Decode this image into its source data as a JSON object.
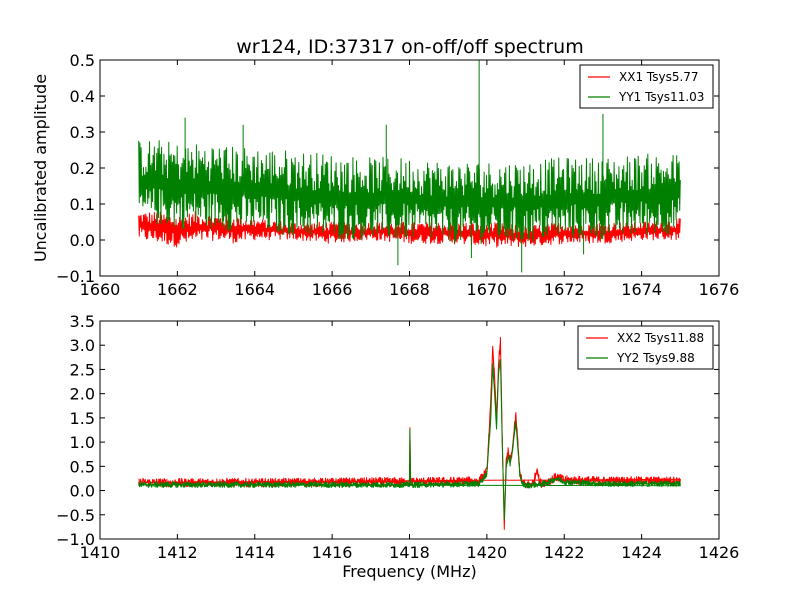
{
  "figure": {
    "title": "wr124, ID:37317 on-off/off spectrum"
  },
  "chart_data": [
    {
      "type": "line",
      "ylabel": "Uncalibrated amplitude",
      "xlabel": "",
      "xlim": [
        1660,
        1676
      ],
      "ylim": [
        -0.1,
        0.5
      ],
      "x_ticks": [
        1660,
        1662,
        1664,
        1666,
        1668,
        1670,
        1672,
        1674,
        1676
      ],
      "y_ticks": [
        -0.1,
        0.0,
        0.1,
        0.2,
        0.3,
        0.4,
        0.5
      ],
      "x_tick_labels": [
        "1660",
        "1662",
        "1664",
        "1666",
        "1668",
        "1670",
        "1672",
        "1674",
        "1676"
      ],
      "y_tick_labels": [
        "−0.1",
        "0.0",
        "0.1",
        "0.2",
        "0.3",
        "0.4",
        "0.5"
      ],
      "legend_position": "top-right",
      "series": [
        {
          "name": "XX1 Tsys5.77",
          "color": "#ff0000",
          "x": [
            1661.0,
            1661.5,
            1662.0,
            1662.5,
            1663.0,
            1663.5,
            1664.0,
            1665.0,
            1666.0,
            1667.0,
            1668.0,
            1669.0,
            1670.0,
            1671.0,
            1672.0,
            1673.0,
            1674.0,
            1675.0
          ],
          "y_min": [
            0.0,
            -0.01,
            -0.02,
            -0.01,
            0.0,
            -0.01,
            0.0,
            0.0,
            -0.01,
            0.0,
            -0.01,
            -0.01,
            -0.02,
            -0.02,
            -0.01,
            -0.01,
            0.0,
            0.0
          ],
          "y_max": [
            0.08,
            0.08,
            0.07,
            0.08,
            0.07,
            0.07,
            0.06,
            0.05,
            0.05,
            0.05,
            0.05,
            0.05,
            0.05,
            0.04,
            0.05,
            0.05,
            0.05,
            0.06
          ]
        },
        {
          "name": "YY1 Tsys11.03",
          "color": "#008000",
          "x": [
            1661.0,
            1661.5,
            1662.0,
            1662.5,
            1663.0,
            1663.5,
            1664.0,
            1665.0,
            1666.0,
            1667.0,
            1668.0,
            1669.0,
            1670.0,
            1671.0,
            1672.0,
            1673.0,
            1674.0,
            1675.0
          ],
          "y_min": [
            0.04,
            0.04,
            0.03,
            0.03,
            0.03,
            0.02,
            0.02,
            0.01,
            0.0,
            0.0,
            0.0,
            -0.01,
            -0.01,
            -0.01,
            0.0,
            0.0,
            0.01,
            0.02
          ],
          "y_max": [
            0.28,
            0.28,
            0.27,
            0.27,
            0.27,
            0.26,
            0.26,
            0.25,
            0.24,
            0.23,
            0.23,
            0.22,
            0.22,
            0.22,
            0.23,
            0.23,
            0.24,
            0.24
          ],
          "spikes": [
            [
              1662.2,
              0.34
            ],
            [
              1663.7,
              0.32
            ],
            [
              1667.4,
              0.32
            ],
            [
              1669.8,
              0.5
            ],
            [
              1673.0,
              0.35
            ],
            [
              1667.7,
              -0.07
            ],
            [
              1670.9,
              -0.09
            ],
            [
              1669.6,
              -0.05
            ],
            [
              1672.5,
              -0.04
            ]
          ]
        }
      ]
    },
    {
      "type": "line",
      "ylabel": "",
      "xlabel": "Frequency (MHz)",
      "xlim": [
        1410,
        1426
      ],
      "ylim": [
        -1.0,
        3.5
      ],
      "x_ticks": [
        1410,
        1412,
        1414,
        1416,
        1418,
        1420,
        1422,
        1424,
        1426
      ],
      "y_ticks": [
        -1.0,
        -0.5,
        0.0,
        0.5,
        1.0,
        1.5,
        2.0,
        2.5,
        3.0,
        3.5
      ],
      "x_tick_labels": [
        "1410",
        "1412",
        "1414",
        "1416",
        "1418",
        "1420",
        "1422",
        "1424",
        "1426"
      ],
      "y_tick_labels": [
        "−1.0",
        "−0.5",
        "0.0",
        "0.5",
        "1.0",
        "1.5",
        "2.0",
        "2.5",
        "3.0",
        "3.5"
      ],
      "legend_position": "top-right",
      "series": [
        {
          "name": "XX2 Tsys11.88",
          "color": "#ff0000",
          "x": [
            1411.0,
            1412.0,
            1413.0,
            1414.0,
            1415.0,
            1416.0,
            1417.0,
            1418.0,
            1418.01,
            1418.03,
            1419.0,
            1419.8,
            1420.0,
            1420.1,
            1420.15,
            1420.2,
            1420.25,
            1420.3,
            1420.35,
            1420.4,
            1420.45,
            1420.5,
            1420.55,
            1420.6,
            1420.65,
            1420.7,
            1420.75,
            1420.8,
            1420.85,
            1420.9,
            1421.0,
            1421.2,
            1421.3,
            1421.35,
            1421.4,
            1421.6,
            1421.8,
            1422.0,
            1423.0,
            1424.0,
            1425.0
          ],
          "y": [
            0.17,
            0.16,
            0.17,
            0.16,
            0.17,
            0.17,
            0.18,
            0.18,
            1.3,
            0.18,
            0.19,
            0.2,
            0.4,
            1.8,
            2.98,
            2.3,
            1.4,
            2.6,
            3.1,
            1.0,
            -0.75,
            0.6,
            0.8,
            0.6,
            0.8,
            1.2,
            1.55,
            1.0,
            0.4,
            0.2,
            0.12,
            0.15,
            0.45,
            0.2,
            0.15,
            0.2,
            0.28,
            0.22,
            0.2,
            0.2,
            0.2
          ]
        },
        {
          "name": "YY2 Tsys9.88",
          "color": "#008000",
          "x": [
            1411.0,
            1412.0,
            1413.0,
            1414.0,
            1415.0,
            1416.0,
            1417.0,
            1418.0,
            1418.01,
            1418.03,
            1419.0,
            1419.8,
            1420.0,
            1420.1,
            1420.15,
            1420.2,
            1420.25,
            1420.3,
            1420.35,
            1420.4,
            1420.45,
            1420.5,
            1420.55,
            1420.6,
            1420.65,
            1420.7,
            1420.75,
            1420.8,
            1420.85,
            1420.9,
            1421.0,
            1421.2,
            1421.4,
            1421.6,
            1421.8,
            1422.0,
            1423.0,
            1424.0,
            1425.0
          ],
          "y": [
            0.12,
            0.12,
            0.12,
            0.12,
            0.12,
            0.12,
            0.12,
            0.12,
            1.25,
            0.12,
            0.13,
            0.14,
            0.35,
            1.5,
            2.6,
            2.0,
            1.3,
            2.4,
            2.7,
            0.9,
            -0.6,
            0.5,
            0.7,
            0.55,
            0.75,
            1.1,
            1.4,
            0.9,
            0.35,
            0.15,
            0.1,
            0.12,
            0.13,
            0.18,
            0.25,
            0.18,
            0.14,
            0.14,
            0.14
          ]
        }
      ]
    }
  ]
}
